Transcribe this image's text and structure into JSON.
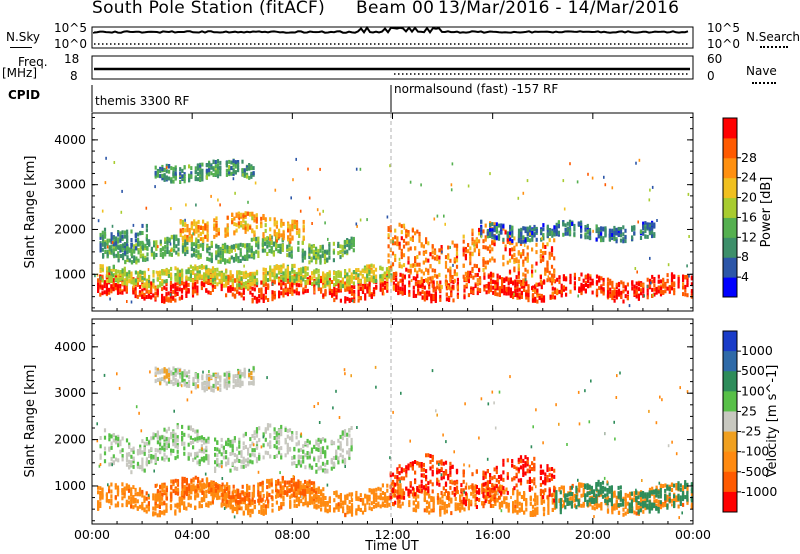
{
  "header": {
    "title": "South Pole Station (fitACF)",
    "beam": "Beam 00",
    "date_range": "13/Mar/2016 - 14/Mar/2016"
  },
  "aux_panels": {
    "nsky_label": "N.Sky",
    "nsearch_label": "N.Search",
    "nsky_top": "10^5",
    "nsky_bottom": "10^0",
    "nsearch_top": "10^5",
    "nsearch_bottom": "10^0",
    "freq_label": "Freq.",
    "freq_unit": "[MHz]",
    "freq_top": "18",
    "freq_bottom": "8",
    "nave_label": "Nave",
    "nave_top": "60",
    "nave_bottom": "0",
    "cpid_label": "CPID",
    "cpid_segments": [
      "themis 3300 RF",
      "normalsound (fast) -157 RF"
    ]
  },
  "colors": {
    "power_scale": [
      "#0000ff",
      "#2c56a8",
      "#3d8f6a",
      "#55b050",
      "#a8cc30",
      "#f0c020",
      "#ff9010",
      "#ff5a00",
      "#ff0000"
    ],
    "velocity_scale": [
      "#1a3cc8",
      "#2f6aa8",
      "#2e8c5a",
      "#58c048",
      "#c8c8c0",
      "#f0a020",
      "#ff8a10",
      "#ff5a00",
      "#ff0000"
    ],
    "dashed_line": "#b0b0b0"
  },
  "chart_data": [
    {
      "type": "heatmap",
      "title": "Power",
      "ylabel": "Slant Range [km]",
      "xlabel": "Time UT",
      "x_ticks": [
        "00:00",
        "04:00",
        "08:00",
        "12:00",
        "16:00",
        "20:00",
        "00:00"
      ],
      "y_ticks": [
        "1000",
        "2000",
        "3000",
        "4000"
      ],
      "ylim": [
        180,
        4600
      ],
      "xlim_hours": [
        0,
        24
      ],
      "colorbar_label": "Power [dB]",
      "colorbar_ticks": [
        "4",
        "8",
        "12",
        "16",
        "20",
        "24",
        "28"
      ],
      "value_range": [
        0,
        32
      ],
      "bands": [
        {
          "t0": 0.2,
          "t1": 24,
          "r": 700,
          "h": 280,
          "v": 29
        },
        {
          "t0": 0.3,
          "t1": 12,
          "r": 950,
          "h": 220,
          "v": 17
        },
        {
          "t0": 0.4,
          "t1": 10.5,
          "r": 1550,
          "h": 260,
          "v": 12
        },
        {
          "t0": 0.3,
          "t1": 2.5,
          "r": 1800,
          "h": 350,
          "v": 9
        },
        {
          "t0": 3.5,
          "t1": 8.5,
          "r": 2050,
          "h": 300,
          "v": 22
        },
        {
          "t0": 2.5,
          "t1": 6.5,
          "r": 3300,
          "h": 220,
          "v": 10
        },
        {
          "t0": 11.8,
          "t1": 18.5,
          "r": 1400,
          "h": 650,
          "v": 25
        },
        {
          "t0": 15.5,
          "t1": 22.5,
          "r": 1950,
          "h": 200,
          "v": 7
        }
      ]
    },
    {
      "type": "heatmap",
      "title": "Velocity",
      "ylabel": "Slant Range [km]",
      "xlabel": "Time UT",
      "x_ticks": [
        "00:00",
        "04:00",
        "08:00",
        "12:00",
        "16:00",
        "20:00",
        "00:00"
      ],
      "y_ticks": [
        "1000",
        "2000",
        "3000",
        "4000"
      ],
      "ylim": [
        180,
        4600
      ],
      "xlim_hours": [
        0,
        24
      ],
      "colorbar_label": "Velocity [m s^-1]",
      "colorbar_ticks": [
        "1000",
        "500",
        "100",
        "25",
        "-25",
        "-100",
        "-500",
        "-1000"
      ],
      "bands": [
        {
          "t0": 0.2,
          "t1": 24,
          "r": 700,
          "h": 300,
          "v": -200
        },
        {
          "t0": 2.5,
          "t1": 9.0,
          "r": 900,
          "h": 250,
          "v": -300
        },
        {
          "t0": 0.3,
          "t1": 10.5,
          "r": 1800,
          "h": 450,
          "v": 10
        },
        {
          "t0": 2.5,
          "t1": 6.5,
          "r": 3300,
          "h": 220,
          "v": 0
        },
        {
          "t0": 11.8,
          "t1": 18.5,
          "r": 1100,
          "h": 500,
          "v": -700
        },
        {
          "t0": 18.5,
          "t1": 24,
          "r": 750,
          "h": 300,
          "v": 150
        }
      ]
    }
  ]
}
